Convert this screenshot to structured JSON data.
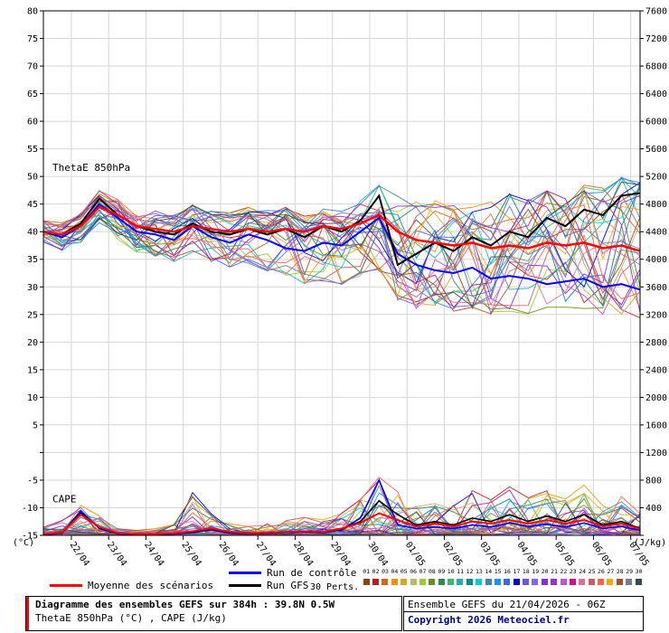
{
  "title_box": {
    "line1": "Diagramme des ensembles GEFS sur 384h : 39.8N 0.5W",
    "line2": "ThetaE 850hPa (°C) , CAPE (J/kg)"
  },
  "credit_box": {
    "line1": "Ensemble GEFS du 21/04/2026 - 06Z",
    "line2": "Copyright 2026 Meteociel.fr"
  },
  "legend": {
    "mean_label": "Moyenne des scénarios",
    "control_label": "Run de contrôle",
    "gfs_label": "Run GFS",
    "perts_label": "30 Perts.",
    "member_numbers": [
      "01",
      "02",
      "03",
      "04",
      "05",
      "06",
      "07",
      "08",
      "09",
      "10",
      "11",
      "12",
      "13",
      "14",
      "15",
      "16",
      "17",
      "18",
      "19",
      "20",
      "21",
      "22",
      "23",
      "24",
      "25",
      "26",
      "27",
      "28",
      "29",
      "30"
    ]
  },
  "axes": {
    "left_unit": "(°C)",
    "right_unit": "(J/kg)",
    "left_tick_labels": [
      "80",
      "75",
      "70",
      "65",
      "60",
      "55",
      "50",
      "45",
      "40",
      "35",
      "30",
      "25",
      "20",
      "15",
      "10",
      "5",
      "",
      "-5",
      "-10",
      "-15"
    ],
    "right_tick_labels": [
      "7600",
      "7200",
      "6800",
      "6400",
      "6000",
      "5600",
      "5200",
      "4800",
      "4400",
      "4000",
      "3600",
      "3200",
      "2800",
      "2400",
      "2000",
      "1600",
      "1200",
      "800",
      "400",
      ""
    ],
    "x_tick_labels": [
      "22/04",
      "23/04",
      "24/04",
      "25/04",
      "26/04",
      "27/04",
      "28/04",
      "29/04",
      "30/04",
      "01/05",
      "02/05",
      "03/05",
      "04/05",
      "05/05",
      "06/05",
      "07/05"
    ]
  },
  "colors": {
    "mean": "#ff0000",
    "control": "#0000ff",
    "gfs": "#000000",
    "grid": "#d6d6d6",
    "copyright": "#00008b",
    "members": [
      "#8b4513",
      "#b22222",
      "#d2691e",
      "#ff8c00",
      "#daa520",
      "#bdb76b",
      "#9acd32",
      "#6b8e23",
      "#2e8b57",
      "#3cb371",
      "#20b2aa",
      "#008b8b",
      "#00ced1",
      "#4682b4",
      "#1e90ff",
      "#4169e1",
      "#0000cd",
      "#6a5acd",
      "#7b68ee",
      "#8a2be2",
      "#9932cc",
      "#ba55d3",
      "#c71585",
      "#db7093",
      "#cd5c5c",
      "#ff6347",
      "#ffa500",
      "#a0522d",
      "#708090",
      "#2f4f4f"
    ]
  },
  "chart_data": {
    "type": "line",
    "title": "Diagramme des ensembles GEFS sur 384h : 39.8N 0.5W",
    "ylabel_left": "ThetaE 850hPa (°C)",
    "ylabel_right": "CAPE (J/kg)",
    "y_left_range": [
      -15,
      80
    ],
    "y_right_range": [
      0,
      7600
    ],
    "x_range_hours": [
      0,
      384
    ],
    "grid": true,
    "annotations": {
      "thetae": "ThetaE 850hPa",
      "cape": "CAPE"
    },
    "x_hours": [
      0,
      12,
      24,
      36,
      48,
      60,
      72,
      84,
      96,
      108,
      120,
      132,
      144,
      156,
      168,
      180,
      192,
      204,
      216,
      228,
      240,
      252,
      264,
      276,
      288,
      300,
      312,
      324,
      336,
      348,
      360,
      372,
      384
    ],
    "x_tick_hours": [
      18,
      42,
      66,
      90,
      114,
      138,
      162,
      186,
      210,
      234,
      258,
      282,
      306,
      330,
      354,
      378
    ],
    "thetae": {
      "mean": [
        40.0,
        39.5,
        41.0,
        44.5,
        43.0,
        41.0,
        40.5,
        40.0,
        41.0,
        40.5,
        40.0,
        40.5,
        40.0,
        40.5,
        40.0,
        41.0,
        40.5,
        41.5,
        43.0,
        40.0,
        38.5,
        38.0,
        37.5,
        38.0,
        37.0,
        37.5,
        37.0,
        38.0,
        37.5,
        38.0,
        37.0,
        37.5,
        36.5
      ],
      "control": [
        40.0,
        39.0,
        41.0,
        45.0,
        42.5,
        40.0,
        39.5,
        38.5,
        41.0,
        39.0,
        38.0,
        39.5,
        38.5,
        37.0,
        36.5,
        38.0,
        37.5,
        40.0,
        42.5,
        36.0,
        34.0,
        33.0,
        32.5,
        33.5,
        31.5,
        32.0,
        31.5,
        30.5,
        31.0,
        31.5,
        30.0,
        30.5,
        29.5
      ],
      "gfs": [
        40.0,
        39.5,
        41.5,
        46.0,
        43.0,
        41.0,
        40.0,
        39.5,
        41.5,
        40.0,
        39.5,
        40.5,
        39.5,
        40.5,
        39.0,
        41.0,
        40.0,
        42.0,
        46.5,
        34.0,
        36.0,
        38.0,
        36.5,
        39.0,
        37.5,
        40.0,
        39.0,
        42.5,
        41.0,
        44.0,
        43.0,
        46.5,
        47.0
      ],
      "env_min": [
        38.5,
        37.0,
        38.5,
        42.0,
        39.0,
        36.5,
        36.0,
        35.0,
        36.0,
        34.5,
        34.0,
        34.5,
        33.0,
        32.5,
        31.0,
        31.5,
        30.5,
        32.0,
        33.0,
        28.0,
        26.5,
        27.0,
        26.0,
        26.5,
        25.5,
        26.0,
        25.5,
        26.5,
        26.0,
        26.5,
        25.0,
        25.5,
        24.0
      ],
      "env_max": [
        42.0,
        41.5,
        43.0,
        47.0,
        45.5,
        44.0,
        43.5,
        43.0,
        44.5,
        43.5,
        43.0,
        44.0,
        43.5,
        44.0,
        43.0,
        44.5,
        44.0,
        45.5,
        48.0,
        46.0,
        45.0,
        45.5,
        44.5,
        45.5,
        45.0,
        46.5,
        45.5,
        47.0,
        46.5,
        48.0,
        47.5,
        49.5,
        48.5
      ]
    },
    "cape": {
      "mean": [
        20,
        40,
        300,
        120,
        30,
        20,
        20,
        30,
        60,
        100,
        50,
        30,
        40,
        50,
        60,
        50,
        100,
        180,
        320,
        220,
        130,
        170,
        130,
        200,
        170,
        220,
        170,
        220,
        170,
        220,
        130,
        170,
        90
      ],
      "control": [
        10,
        30,
        350,
        100,
        20,
        10,
        10,
        20,
        40,
        80,
        30,
        20,
        30,
        40,
        50,
        40,
        80,
        250,
        800,
        150,
        100,
        120,
        100,
        150,
        120,
        180,
        130,
        160,
        120,
        180,
        100,
        130,
        70
      ],
      "gfs": [
        15,
        35,
        320,
        110,
        25,
        15,
        15,
        25,
        50,
        90,
        40,
        25,
        35,
        45,
        55,
        45,
        90,
        200,
        500,
        300,
        150,
        200,
        150,
        250,
        200,
        300,
        200,
        280,
        200,
        300,
        150,
        200,
        100
      ],
      "env_max": [
        100,
        200,
        520,
        250,
        80,
        60,
        80,
        150,
        600,
        300,
        150,
        120,
        150,
        200,
        250,
        200,
        300,
        500,
        820,
        600,
        450,
        500,
        400,
        600,
        500,
        650,
        500,
        600,
        500,
        700,
        400,
        550,
        300
      ]
    }
  }
}
